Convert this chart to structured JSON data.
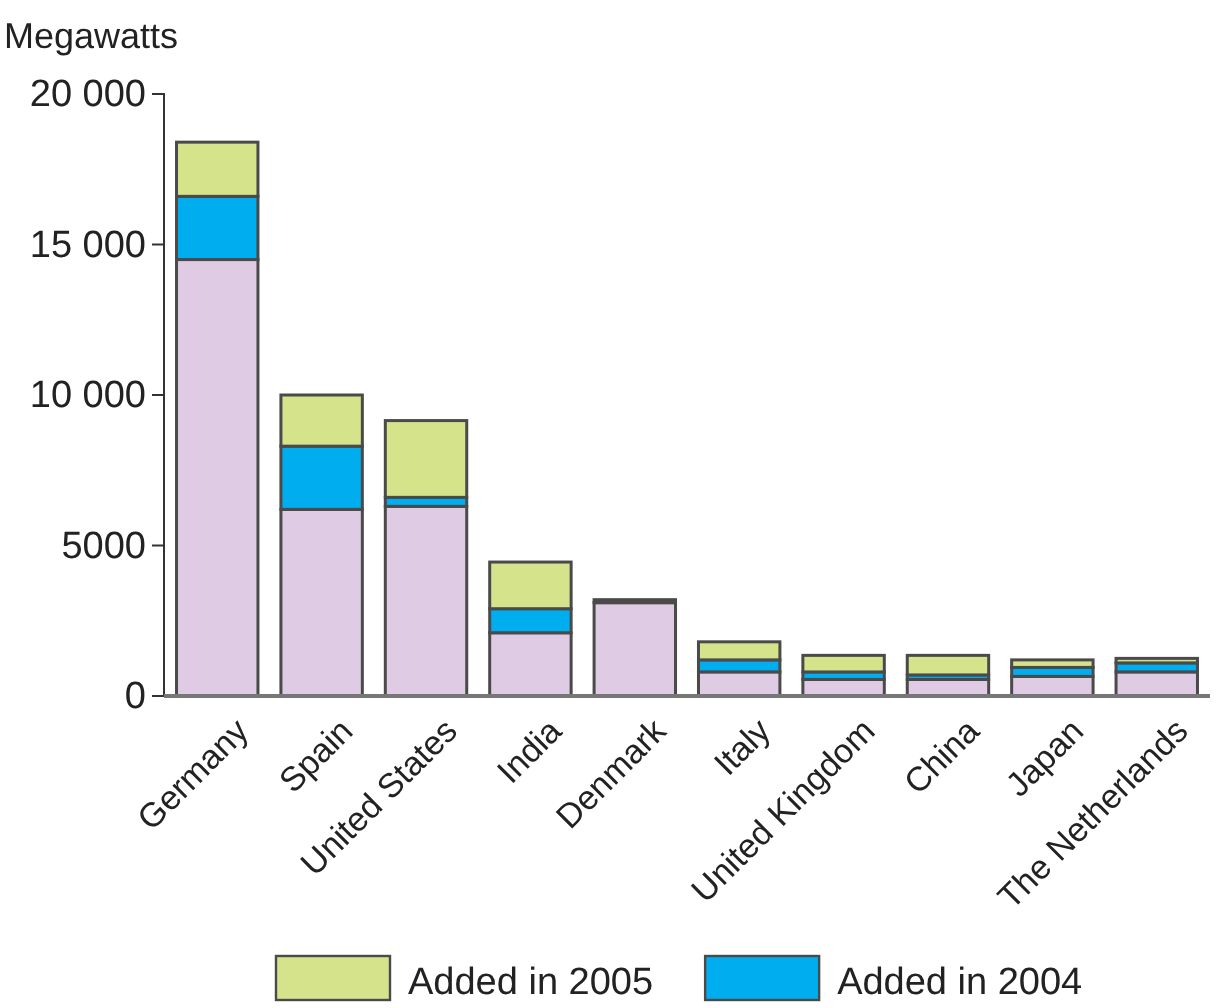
{
  "chart_data": {
    "type": "bar",
    "stacked": true,
    "ylabel": "Megawatts",
    "categories": [
      "Germany",
      "Spain",
      "United States",
      "India",
      "Denmark",
      "Italy",
      "United Kingdom",
      "China",
      "Japan",
      "The Netherlands"
    ],
    "series": [
      {
        "color": "#dfcce4",
        "values": [
          14500,
          6200,
          6300,
          2100,
          3100,
          800,
          550,
          550,
          650,
          800
        ]
      },
      {
        "name": "Added in 2004",
        "color": "#00aeef",
        "values": [
          2100,
          2100,
          300,
          800,
          null,
          400,
          250,
          150,
          300,
          300
        ]
      },
      {
        "name": "Added in 2005",
        "color": "#d5e48b",
        "values": [
          1800,
          1700,
          2550,
          1550,
          100,
          600,
          550,
          650,
          250,
          150
        ]
      }
    ],
    "ylim": [
      0,
      20000
    ],
    "yticks": [
      0,
      5000,
      {
        "value": 10000,
        "label": "10 000"
      },
      {
        "value": 15000,
        "label": "15 000"
      },
      {
        "value": 20000,
        "label": "20 000"
      }
    ],
    "legend": "bottom",
    "grid": false
  }
}
